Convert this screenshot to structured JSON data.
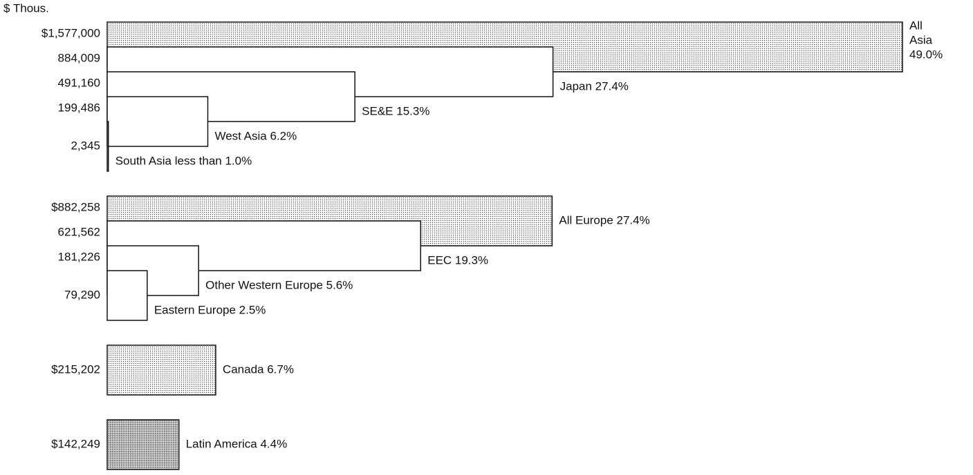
{
  "chart_data": {
    "type": "nested-bar",
    "axis_label": "$ Thous.",
    "xlim": [
      0,
      1577000
    ],
    "groups": [
      {
        "bars": [
          {
            "value": 1577000,
            "value_label": "$1,577,000",
            "label": [
              "All",
              "Asia",
              "49.0%"
            ],
            "pattern": "dots"
          },
          {
            "value": 884009,
            "value_label": "884,009",
            "label": "Japan  27.4%"
          },
          {
            "value": 491160,
            "value_label": "491,160",
            "label": "SE&E  15.3%"
          },
          {
            "value": 199486,
            "value_label": "199,486",
            "label": "West Asia  6.2%"
          },
          {
            "value": 2345,
            "value_label": "2,345",
            "label": "South Asia  less than 1.0%"
          }
        ]
      },
      {
        "bars": [
          {
            "value": 882258,
            "value_label": "$882,258",
            "label": "All Europe 27.4%",
            "pattern": "dots"
          },
          {
            "value": 621562,
            "value_label": "621,562",
            "label": "EEC 19.3%"
          },
          {
            "value": 181226,
            "value_label": "181,226",
            "label": "Other Western Europe 5.6%"
          },
          {
            "value": 79290,
            "value_label": "79,290",
            "label": "Eastern Europe 2.5%"
          }
        ]
      },
      {
        "bars": [
          {
            "value": 215202,
            "value_label": "$215,202",
            "label": "Canada 6.7%",
            "pattern": "dots"
          }
        ]
      },
      {
        "bars": [
          {
            "value": 142249,
            "value_label": "$142,249",
            "label": "Latin America 4.4%",
            "pattern": "dots-dense"
          }
        ]
      }
    ]
  }
}
